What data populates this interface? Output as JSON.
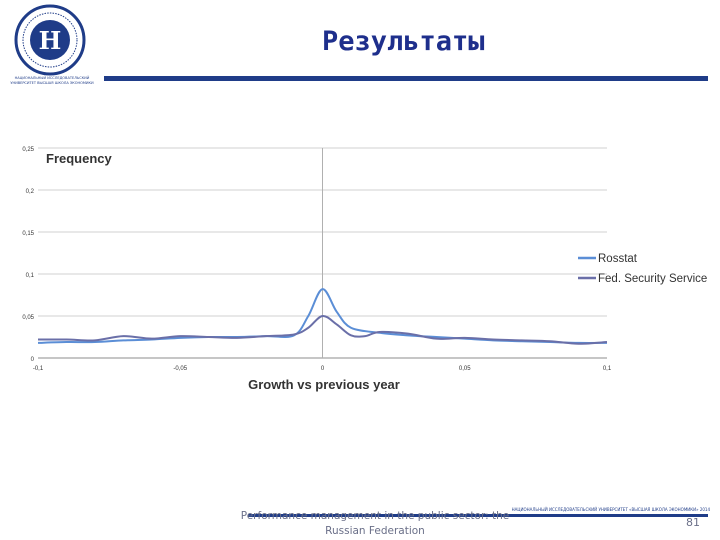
{
  "header": {
    "title": "Результаты",
    "logo_caption": "НАЦИОНАЛЬНЫЙ ИССЛЕДОВАТЕЛЬСКИЙ УНИВЕРСИТЕТ ВЫСШАЯ ШКОЛА ЭКОНОМИКИ",
    "brand_color": "#1f3c88"
  },
  "footer": {
    "text": "Performance management in the public sector: the Russian Federation",
    "org": "НАЦИОНАЛЬНЫЙ ИССЛЕДОВАТЕЛЬСКИЙ УНИВЕРСИТЕТ «ВЫСШАЯ ШКОЛА ЭКОНОМИКИ» 2014",
    "page_number": "81"
  },
  "chart_data": {
    "type": "line",
    "ylabel": "Frequency",
    "xlabel": "Growth vs previous year",
    "xlim": [
      -0.1,
      0.1
    ],
    "ylim": [
      0,
      0.25
    ],
    "x_ticks": [
      "-0,1",
      "-0,05",
      "0",
      "0,05",
      "0,1"
    ],
    "x_tick_values": [
      -0.1,
      -0.05,
      0,
      0.05,
      0.1
    ],
    "y_ticks": [
      "0",
      "0,05",
      "0,1",
      "0,15",
      "0,2",
      "0,25"
    ],
    "y_tick_values": [
      0,
      0.05,
      0.1,
      0.15,
      0.2,
      0.25
    ],
    "grid": "horizontal",
    "legend": "right",
    "series": [
      {
        "name": "Rosstat",
        "color": "#5b8ed6",
        "x": [
          -0.1,
          -0.09,
          -0.08,
          -0.07,
          -0.06,
          -0.05,
          -0.04,
          -0.03,
          -0.02,
          -0.01,
          -0.005,
          0,
          0.005,
          0.01,
          0.02,
          0.03,
          0.04,
          0.05,
          0.06,
          0.07,
          0.08,
          0.09,
          0.1
        ],
        "values": [
          0.018,
          0.019,
          0.019,
          0.021,
          0.022,
          0.024,
          0.025,
          0.025,
          0.026,
          0.027,
          0.05,
          0.082,
          0.055,
          0.036,
          0.03,
          0.027,
          0.025,
          0.023,
          0.021,
          0.02,
          0.019,
          0.018,
          0.018
        ]
      },
      {
        "name": "Fed. Security Service",
        "color": "#6a6fa8",
        "x": [
          -0.1,
          -0.09,
          -0.08,
          -0.07,
          -0.06,
          -0.05,
          -0.04,
          -0.03,
          -0.02,
          -0.01,
          -0.005,
          0,
          0.005,
          0.01,
          0.015,
          0.02,
          0.03,
          0.04,
          0.05,
          0.06,
          0.07,
          0.08,
          0.09,
          0.1
        ],
        "values": [
          0.022,
          0.022,
          0.021,
          0.026,
          0.023,
          0.026,
          0.025,
          0.024,
          0.026,
          0.028,
          0.036,
          0.05,
          0.04,
          0.027,
          0.026,
          0.031,
          0.029,
          0.023,
          0.024,
          0.022,
          0.021,
          0.02,
          0.017,
          0.019
        ]
      }
    ]
  }
}
